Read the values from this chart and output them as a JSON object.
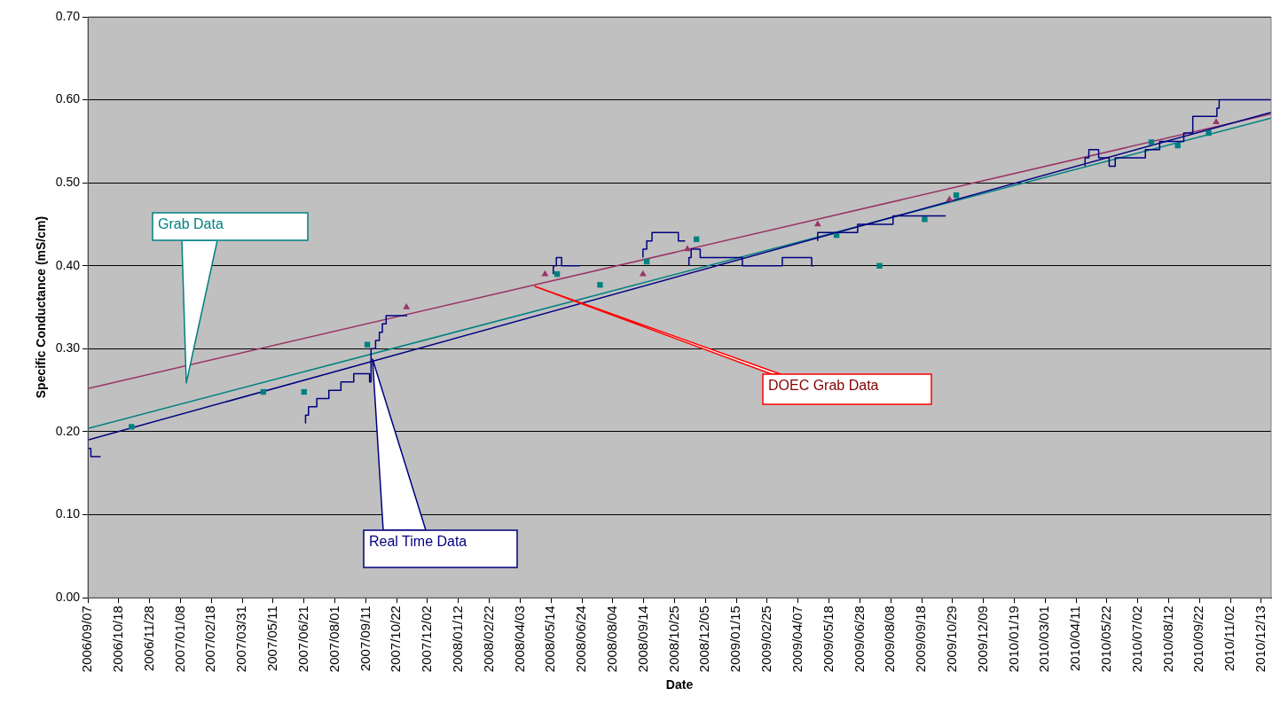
{
  "chart_data": {
    "type": "line",
    "xlabel": "Date",
    "ylabel": "Specific Conductance (mS/cm)",
    "xlim": [
      "2006-09-07",
      "2010-12-26"
    ],
    "xticks": [
      {
        "value": "2006-09-07",
        "label": "2006/09/07"
      },
      {
        "value": "2006-10-18",
        "label": "2006/10/18"
      },
      {
        "value": "2006-11-28",
        "label": "2006/11/28"
      },
      {
        "value": "2007-01-08",
        "label": "2007/01/08"
      },
      {
        "value": "2007-02-18",
        "label": "2007/02/18"
      },
      {
        "value": "2007-03-31",
        "label": "2007/03/31"
      },
      {
        "value": "2007-05-11",
        "label": "2007/05/11"
      },
      {
        "value": "2007-06-21",
        "label": "2007/06/21"
      },
      {
        "value": "2007-08-01",
        "label": "2007/08/01"
      },
      {
        "value": "2007-09-11",
        "label": "2007/09/11"
      },
      {
        "value": "2007-10-22",
        "label": "2007/10/22"
      },
      {
        "value": "2007-12-02",
        "label": "2007/12/02"
      },
      {
        "value": "2008-01-12",
        "label": "2008/01/12"
      },
      {
        "value": "2008-02-22",
        "label": "2008/02/22"
      },
      {
        "value": "2008-04-03",
        "label": "2008/04/03"
      },
      {
        "value": "2008-05-14",
        "label": "2008/05/14"
      },
      {
        "value": "2008-06-24",
        "label": "2008/06/24"
      },
      {
        "value": "2008-08-04",
        "label": "2008/08/04"
      },
      {
        "value": "2008-09-14",
        "label": "2008/09/14"
      },
      {
        "value": "2008-10-25",
        "label": "2008/10/25"
      },
      {
        "value": "2008-12-05",
        "label": "2008/12/05"
      },
      {
        "value": "2009-01-15",
        "label": "2009/01/15"
      },
      {
        "value": "2009-02-25",
        "label": "2009/02/25"
      },
      {
        "value": "2009-04-07",
        "label": "2009/04/07"
      },
      {
        "value": "2009-05-18",
        "label": "2009/05/18"
      },
      {
        "value": "2009-06-28",
        "label": "2009/06/28"
      },
      {
        "value": "2009-08-08",
        "label": "2009/08/08"
      },
      {
        "value": "2009-09-18",
        "label": "2009/09/18"
      },
      {
        "value": "2009-10-29",
        "label": "2009/10/29"
      },
      {
        "value": "2009-12-09",
        "label": "2009/12/09"
      },
      {
        "value": "2010-01-19",
        "label": "2010/01/19"
      },
      {
        "value": "2010-03-01",
        "label": "2010/03/01"
      },
      {
        "value": "2010-04-11",
        "label": "2010/04/11"
      },
      {
        "value": "2010-05-22",
        "label": "2010/05/22"
      },
      {
        "value": "2010-07-02",
        "label": "2010/07/02"
      },
      {
        "value": "2010-08-12",
        "label": "2010/08/12"
      },
      {
        "value": "2010-09-22",
        "label": "2010/09/22"
      },
      {
        "value": "2010-11-02",
        "label": "2010/11/02"
      },
      {
        "value": "2010-12-13",
        "label": "2010/12/13"
      }
    ],
    "ylim": [
      0,
      0.7
    ],
    "yticks": [
      {
        "value": 0,
        "label": "0.00"
      },
      {
        "value": 0.1,
        "label": "0.10"
      },
      {
        "value": 0.2,
        "label": "0.20"
      },
      {
        "value": 0.3,
        "label": "0.30"
      },
      {
        "value": 0.4,
        "label": "0.40"
      },
      {
        "value": 0.5,
        "label": "0.50"
      },
      {
        "value": 0.6,
        "label": "0.60"
      },
      {
        "value": 0.7,
        "label": "0.70"
      }
    ],
    "grid": "y",
    "legend": false,
    "series": [
      {
        "type": "step",
        "color": "#000080",
        "marker": "none",
        "x": [
          "2006-09-07",
          "2006-09-11",
          "2006-09-17",
          "2006-09-24",
          "2006-09-25",
          "2007-06-23",
          "2007-06-27",
          "2007-07-08",
          "2007-07-24",
          "2007-08-09",
          "2007-08-26",
          "2007-09-16",
          "2007-09-18",
          "2007-09-24",
          "2007-09-29",
          "2007-10-03",
          "2007-10-08",
          "2007-10-30",
          "2007-11-05",
          "2007-11-06",
          "2008-05-17",
          "2008-05-21",
          "2008-05-28",
          "2008-06-03",
          "2008-06-21",
          "2008-06-22",
          "2008-09-13",
          "2008-09-18",
          "2008-09-25",
          "2008-10-30",
          "2008-11-03",
          "2008-11-08",
          "2008-11-09",
          "2008-11-13",
          "2008-11-16",
          "2008-11-28",
          "2009-01-23",
          "2009-03-17",
          "2009-04-25",
          "2009-04-27",
          "2009-04-28",
          "2009-04-29",
          "2009-05-03",
          "2009-06-25",
          "2009-08-11",
          "2009-09-15",
          "2009-10-20",
          "2009-10-21",
          "2010-04-23",
          "2010-04-28",
          "2010-05-11",
          "2010-05-25",
          "2010-06-02",
          "2010-07-12",
          "2010-07-31",
          "2010-09-01",
          "2010-09-13",
          "2010-10-15",
          "2010-10-18",
          "2010-11-28",
          "2010-12-26"
        ],
        "values": [
          0.19,
          0.18,
          0.17,
          0.17,
          null,
          0.21,
          0.22,
          0.23,
          0.24,
          0.25,
          0.26,
          0.27,
          0.26,
          0.3,
          0.31,
          0.32,
          0.33,
          0.34,
          0.34,
          null,
          0.39,
          0.4,
          0.41,
          0.4,
          0.4,
          null,
          0.41,
          0.42,
          0.43,
          0.44,
          0.43,
          0.43,
          null,
          0.4,
          0.41,
          0.42,
          0.41,
          0.4,
          0.41,
          0.4,
          0.4,
          null,
          0.43,
          0.44,
          0.45,
          0.46,
          0.46,
          null,
          0.52,
          0.53,
          0.54,
          0.53,
          0.52,
          0.53,
          0.54,
          0.55,
          0.56,
          0.58,
          0.59,
          0.6,
          0.6
        ]
      },
      {
        "type": "scatter",
        "color": "#008080",
        "marker": "square",
        "x": [
          "2006-11-04",
          "2007-04-28",
          "2007-06-21",
          "2007-09-13",
          "2008-05-22",
          "2008-07-18",
          "2008-09-18",
          "2008-11-23",
          "2009-05-28",
          "2009-07-24",
          "2009-09-22",
          "2009-11-03",
          "2010-07-20",
          "2010-08-24",
          "2010-10-04"
        ],
        "values": [
          0.206,
          0.248,
          0.248,
          0.305,
          0.39,
          0.377,
          0.405,
          0.432,
          0.437,
          0.4,
          0.456,
          0.485,
          0.549,
          0.545,
          0.56
        ]
      },
      {
        "type": "scatter",
        "color": "#993366",
        "marker": "triangle",
        "x": [
          "2007-11-04",
          "2008-05-06",
          "2008-09-13",
          "2008-11-11",
          "2009-05-03",
          "2009-10-25",
          "2010-10-14"
        ],
        "values": [
          0.35,
          0.39,
          0.39,
          0.42,
          0.45,
          0.48,
          0.573
        ]
      },
      {
        "color": "#000080",
        "marker": "none",
        "x": [
          "2006-09-07",
          "2010-12-26"
        ],
        "values": [
          0.19,
          0.585
        ]
      },
      {
        "color": "#008080",
        "marker": "none",
        "x": [
          "2006-09-07",
          "2010-12-26"
        ],
        "values": [
          0.204,
          0.578
        ]
      },
      {
        "color": "#993366",
        "marker": "none",
        "x": [
          "2006-09-07",
          "2010-12-26"
        ],
        "values": [
          0.252,
          0.583
        ]
      }
    ],
    "annotations": [
      "Grab Data",
      "DOEC Grab Data",
      "Real Time Data"
    ]
  }
}
